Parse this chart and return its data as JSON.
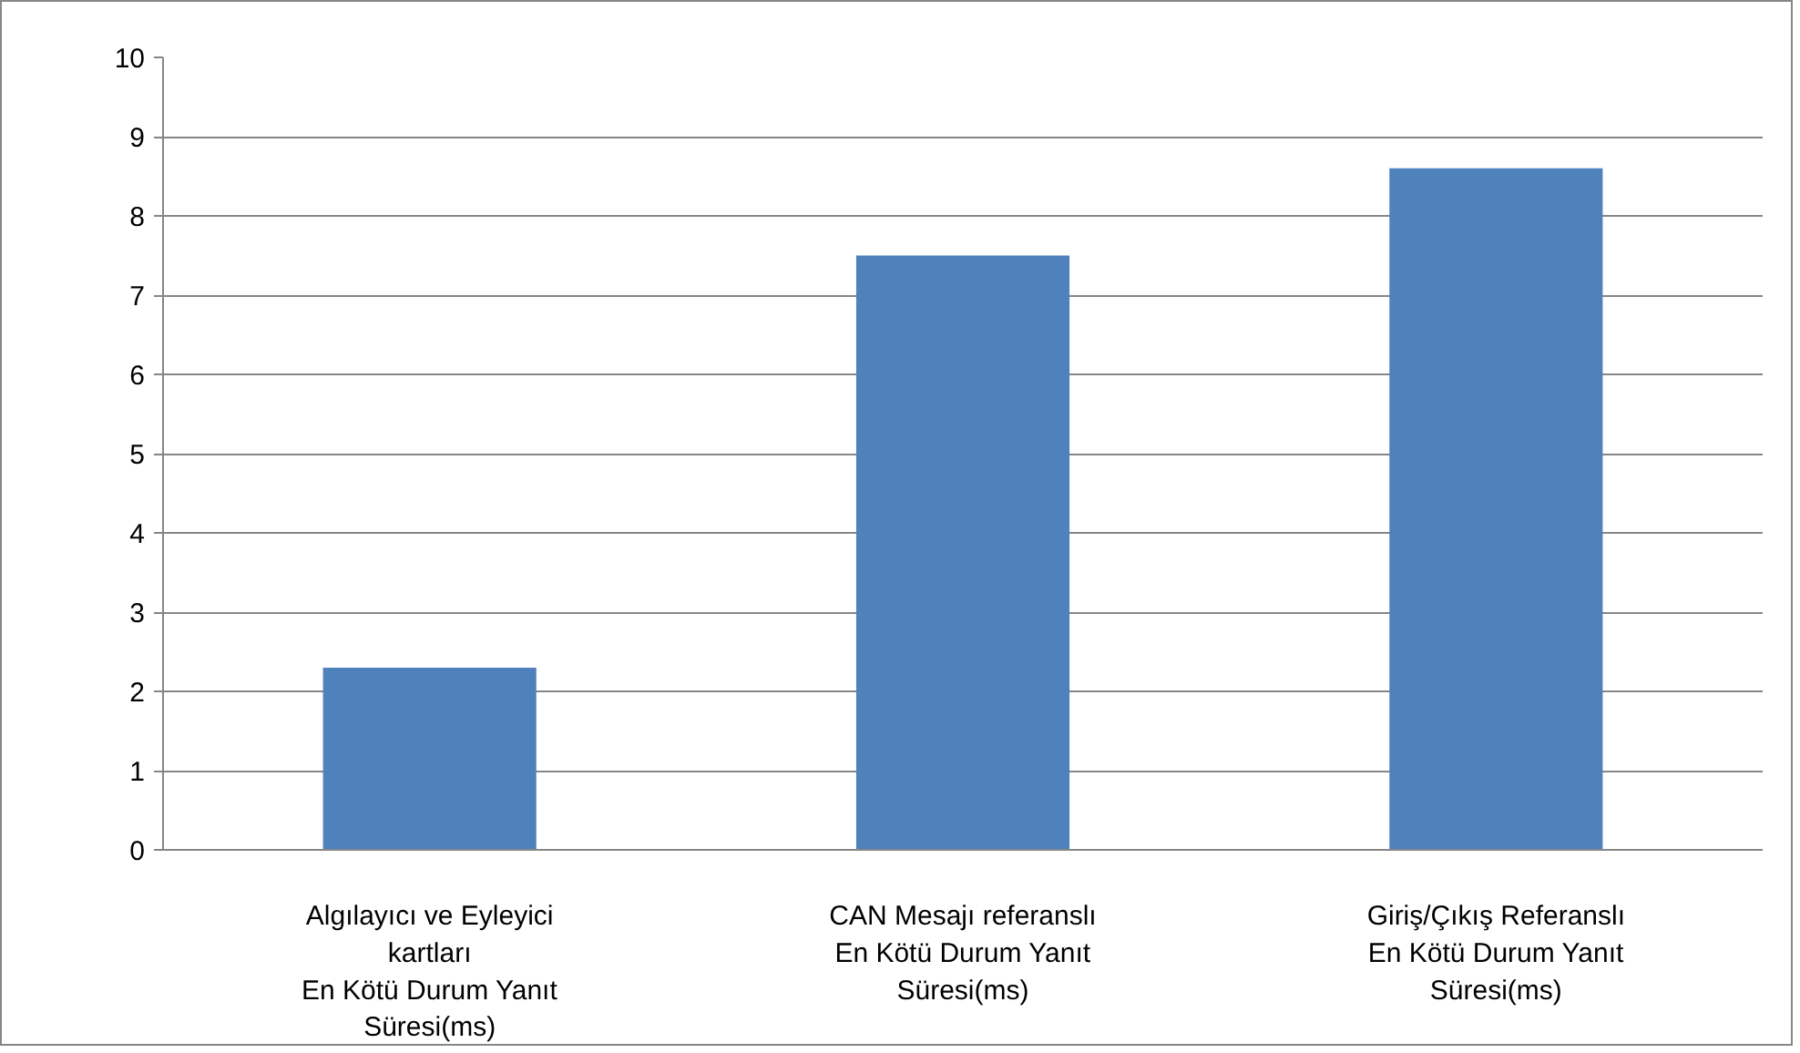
{
  "chart_data": {
    "type": "bar",
    "categories": [
      "Algılayıcı ve Eyleyici\nkartları\nEn Kötü Durum Yanıt\nSüresi(ms)",
      "CAN Mesajı referanslı\nEn Kötü Durum Yanıt\nSüresi(ms)",
      "Giriş/Çıkış Referanslı\nEn Kötü Durum Yanıt\nSüresi(ms)"
    ],
    "values": [
      2.3,
      7.5,
      8.6
    ],
    "color": "#4f81bd",
    "ylim": [
      0,
      10
    ],
    "yticks": [
      0,
      1,
      2,
      3,
      4,
      5,
      6,
      7,
      8,
      9,
      10
    ],
    "grid": "y"
  }
}
